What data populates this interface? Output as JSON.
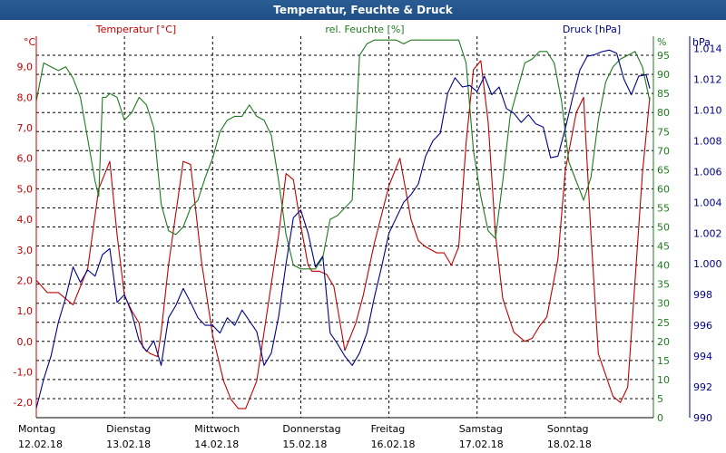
{
  "window": {
    "title": "Temperatur, Feuchte & Druck"
  },
  "colors": {
    "temperature": "#c00000",
    "humidity": "#1f7a1f",
    "pressure": "#00008b",
    "grid": "#000000",
    "title_bg": "#1f4f86"
  },
  "chart_data": {
    "type": "line",
    "title": "Temperatur, Feuchte & Druck",
    "grid": true,
    "x_days": [
      {
        "day": "Montag",
        "date": "12.02.18"
      },
      {
        "day": "Dienstag",
        "date": "13.02.18"
      },
      {
        "day": "Mittwoch",
        "date": "14.02.18"
      },
      {
        "day": "Donnerstag",
        "date": "15.02.18"
      },
      {
        "day": "Freitag",
        "date": "16.02.18"
      },
      {
        "day": "Samstag",
        "date": "17.02.18"
      },
      {
        "day": "Sonntag",
        "date": "18.02.18"
      }
    ],
    "xlim_hours": [
      0,
      168
    ],
    "axes": {
      "temperature": {
        "label": "Temperatur [°C]",
        "unit": "°C",
        "ylim": [
          -2.5,
          10.0
        ],
        "ticks": [
          "9,0",
          "8,0",
          "7,0",
          "6,0",
          "5,0",
          "4,0",
          "3,0",
          "2,0",
          "1,0",
          "0,0",
          "-1,0",
          "-2,0"
        ],
        "tick_values": [
          9,
          8,
          7,
          6,
          5,
          4,
          3,
          2,
          1,
          0,
          -1,
          -2
        ]
      },
      "humidity": {
        "label": "rel. Feuchte [%]",
        "unit": "%",
        "ylim": [
          0,
          100
        ],
        "ticks": [
          "95",
          "90",
          "85",
          "80",
          "75",
          "70",
          "65",
          "60",
          "55",
          "50",
          "45",
          "40",
          "35",
          "30",
          "25",
          "20",
          "15",
          "10",
          "5",
          "0"
        ],
        "tick_values": [
          95,
          90,
          85,
          80,
          75,
          70,
          65,
          60,
          55,
          50,
          45,
          40,
          35,
          30,
          25,
          20,
          15,
          10,
          5,
          0
        ]
      },
      "pressure": {
        "label": "Druck [hPa]",
        "unit": "hPa",
        "ylim": [
          990,
          1014.8
        ],
        "ticks": [
          "1.014",
          "1.012",
          "1.010",
          "1.008",
          "1.006",
          "1.004",
          "1.002",
          "1.000",
          "998",
          "996",
          "994",
          "992",
          "990"
        ],
        "tick_values": [
          1014,
          1012,
          1010,
          1008,
          1006,
          1004,
          1002,
          1000,
          998,
          996,
          994,
          992,
          990
        ]
      }
    },
    "series": [
      {
        "name": "Temperatur [°C]",
        "axis": "temperature",
        "x": [
          0,
          3,
          6,
          10,
          14,
          17,
          20,
          22,
          24,
          26,
          28,
          29,
          31,
          33,
          34,
          36,
          38,
          40,
          42,
          45,
          48,
          51,
          53,
          55,
          57,
          60,
          63,
          66,
          68,
          70,
          72,
          74,
          75,
          77,
          79,
          81,
          84,
          87,
          89,
          92,
          96,
          99,
          102,
          104,
          106,
          109,
          111,
          113,
          115,
          117,
          119,
          121,
          123,
          125,
          127,
          130,
          133,
          135,
          137,
          139,
          142,
          144,
          147,
          149,
          151,
          153,
          155,
          157,
          159,
          161,
          163,
          165,
          167
        ],
        "y": [
          2.0,
          1.6,
          1.6,
          1.2,
          2.4,
          5.0,
          5.9,
          3.5,
          1.5,
          1.0,
          0.6,
          -0.2,
          -0.4,
          -0.5,
          0.3,
          2.5,
          4.2,
          5.9,
          5.8,
          2.6,
          0.2,
          -1.3,
          -1.9,
          -2.2,
          -2.2,
          -1.3,
          1.1,
          3.5,
          5.5,
          5.3,
          3.8,
          2.5,
          2.3,
          2.3,
          2.2,
          1.8,
          -0.3,
          0.6,
          1.5,
          3.2,
          5.1,
          6.0,
          4.0,
          3.3,
          3.1,
          2.9,
          2.9,
          2.5,
          3.1,
          6.5,
          8.9,
          9.2,
          7.2,
          3.5,
          1.4,
          0.3,
          0.0,
          0.1,
          0.5,
          0.8,
          2.7,
          5.6,
          7.5,
          8.0,
          3.5,
          -0.4,
          -1.1,
          -1.8,
          -2.0,
          -1.5,
          2.0,
          5.5,
          8.0
        ]
      },
      {
        "name": "rel. Feuchte [%]",
        "axis": "humidity",
        "x": [
          0,
          2,
          4,
          6,
          8,
          10,
          12,
          14,
          16,
          17,
          18,
          19,
          20,
          22,
          24,
          26,
          28,
          30,
          32,
          34,
          36,
          38,
          40,
          42,
          44,
          46,
          48,
          50,
          52,
          54,
          56,
          58,
          60,
          62,
          64,
          66,
          68,
          70,
          72,
          74,
          76,
          78,
          80,
          82,
          84,
          86,
          88,
          90,
          92,
          94,
          96,
          98,
          100,
          102,
          104,
          105,
          107,
          109,
          111,
          113,
          115,
          117,
          119,
          121,
          123,
          125,
          127,
          129,
          131,
          133,
          135,
          137,
          139,
          141,
          143,
          145,
          147,
          149,
          151,
          153,
          155,
          157,
          159,
          161,
          163,
          165,
          167
        ],
        "y": [
          83,
          93,
          92,
          91,
          92,
          89,
          84,
          73,
          62,
          58,
          84,
          84,
          85,
          84,
          78,
          80,
          84,
          82,
          76,
          56,
          49,
          48,
          50,
          55,
          57,
          63,
          68,
          75,
          78,
          79,
          79,
          82,
          79,
          78,
          74,
          62,
          48,
          40,
          39,
          39,
          39,
          42,
          52,
          53,
          55,
          57,
          95,
          98,
          99,
          99,
          99,
          99,
          98,
          99,
          99,
          99,
          99,
          99,
          99,
          99,
          99,
          93,
          70,
          58,
          49,
          47,
          62,
          79,
          86,
          93,
          94,
          96,
          96,
          93,
          83,
          67,
          62,
          57,
          63,
          78,
          88,
          92,
          94,
          95,
          96,
          92,
          83
        ]
      },
      {
        "name": "Druck [hPa]",
        "axis": "pressure",
        "x": [
          0,
          2,
          4,
          6,
          8,
          10,
          12,
          14,
          16,
          18,
          20,
          22,
          24,
          26,
          28,
          30,
          32,
          34,
          36,
          38,
          40,
          42,
          44,
          46,
          48,
          50,
          52,
          54,
          56,
          58,
          60,
          62,
          64,
          66,
          68,
          70,
          72,
          74,
          76,
          78,
          80,
          82,
          84,
          86,
          88,
          90,
          92,
          94,
          96,
          98,
          100,
          102,
          104,
          106,
          108,
          110,
          112,
          114,
          116,
          118,
          120,
          122,
          124,
          126,
          128,
          130,
          132,
          134,
          136,
          138,
          140,
          142,
          144,
          146,
          148,
          150,
          152,
          154,
          156,
          158,
          160,
          162,
          164,
          166,
          167
        ],
        "y": [
          990.6,
          992.5,
          994,
          996.2,
          997.8,
          999.8,
          998.8,
          999.6,
          999.2,
          1000.6,
          1001,
          997.5,
          998,
          996.8,
          995,
          994.3,
          995,
          993.4,
          996.5,
          997.3,
          998.4,
          997.5,
          996.5,
          996,
          996,
          995.5,
          996.5,
          996,
          997,
          996.3,
          995.6,
          993.4,
          994.2,
          996.6,
          1000,
          1003,
          1003.5,
          1002,
          999.8,
          1000.5,
          995.5,
          994.8,
          994,
          993.4,
          994.2,
          995.5,
          997.8,
          999.8,
          1002,
          1003,
          1004,
          1004.5,
          1005.2,
          1007,
          1008,
          1008.5,
          1011.1,
          1012.1,
          1011.5,
          1011.6,
          1011.2,
          1012.2,
          1011,
          1011.5,
          1010.1,
          1009.8,
          1009.2,
          1009.7,
          1009.1,
          1008.9,
          1006.9,
          1007,
          1008.8,
          1010.8,
          1012.6,
          1013.5,
          1013.6,
          1013.8,
          1013.9,
          1013.7,
          1012,
          1011,
          1012.2,
          1012.3,
          1011.4
        ]
      }
    ]
  }
}
